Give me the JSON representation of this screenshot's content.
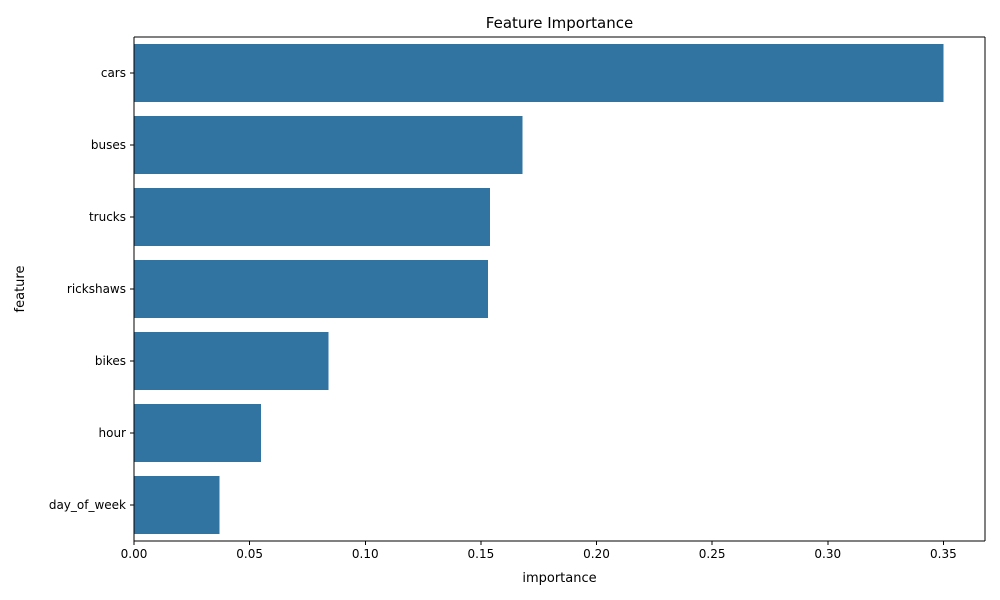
{
  "chart_data": {
    "type": "bar",
    "orientation": "horizontal",
    "title": "Feature Importance",
    "xlabel": "importance",
    "ylabel": "feature",
    "categories": [
      "cars",
      "buses",
      "trucks",
      "rickshaws",
      "bikes",
      "hour",
      "day_of_week"
    ],
    "values": [
      0.35,
      0.168,
      0.154,
      0.153,
      0.084,
      0.055,
      0.037
    ],
    "xlim": [
      0,
      0.368
    ],
    "xticks": [
      0.0,
      0.05,
      0.1,
      0.15,
      0.2,
      0.25,
      0.3,
      0.35
    ],
    "xtick_labels": [
      "0.00",
      "0.05",
      "0.10",
      "0.15",
      "0.20",
      "0.25",
      "0.30",
      "0.35"
    ],
    "grid": false,
    "bar_color": "#3274a1"
  }
}
